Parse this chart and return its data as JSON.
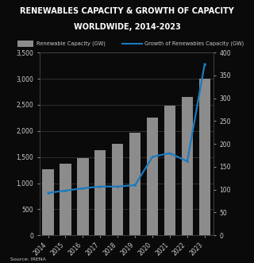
{
  "title_line1": "RENEWABLES CAPACITY & GROWTH OF CAPACITY",
  "title_line2": "WORLDWIDE, 2014-2023",
  "title_bg_color": "#29abe2",
  "title_text_color": "#ffffff",
  "bg_color": "#0a0a0a",
  "years": [
    "2014",
    "2015",
    "2016",
    "2017",
    "2018",
    "2019",
    "2020",
    "2021",
    "2022",
    "2023"
  ],
  "capacity_gw": [
    1270,
    1380,
    1480,
    1625,
    1750,
    1960,
    2250,
    2490,
    2650,
    3000
  ],
  "growth_gw": [
    93,
    98,
    103,
    107,
    107,
    110,
    172,
    180,
    162,
    375
  ],
  "bar_color": "#8c8c8c",
  "line_color": "#1a7abf",
  "left_ylim": [
    0,
    3500
  ],
  "right_ylim": [
    0,
    400
  ],
  "left_yticks": [
    0,
    500,
    1000,
    1500,
    2000,
    2500,
    3000,
    3500
  ],
  "left_yticklabels": [
    "0",
    "500",
    "1,000",
    "1,500",
    "2,000",
    "2,500",
    "3,000",
    "3,500"
  ],
  "right_yticks": [
    0,
    50,
    100,
    150,
    200,
    250,
    300,
    350,
    400
  ],
  "right_yticklabels": [
    "0",
    "50",
    "100",
    "150",
    "200",
    "250",
    "300",
    "350",
    "400"
  ],
  "legend_bar_label": "Renewable Capacity (GW)",
  "legend_line_label": "Growth of Renewables Capacity (GW)",
  "source_text": "Source: IRENA",
  "grid_color": "#888888",
  "axis_text_color": "#cccccc",
  "title_fontsize": 7.0,
  "tick_fontsize": 5.5,
  "legend_fontsize": 4.8,
  "source_fontsize": 4.5
}
